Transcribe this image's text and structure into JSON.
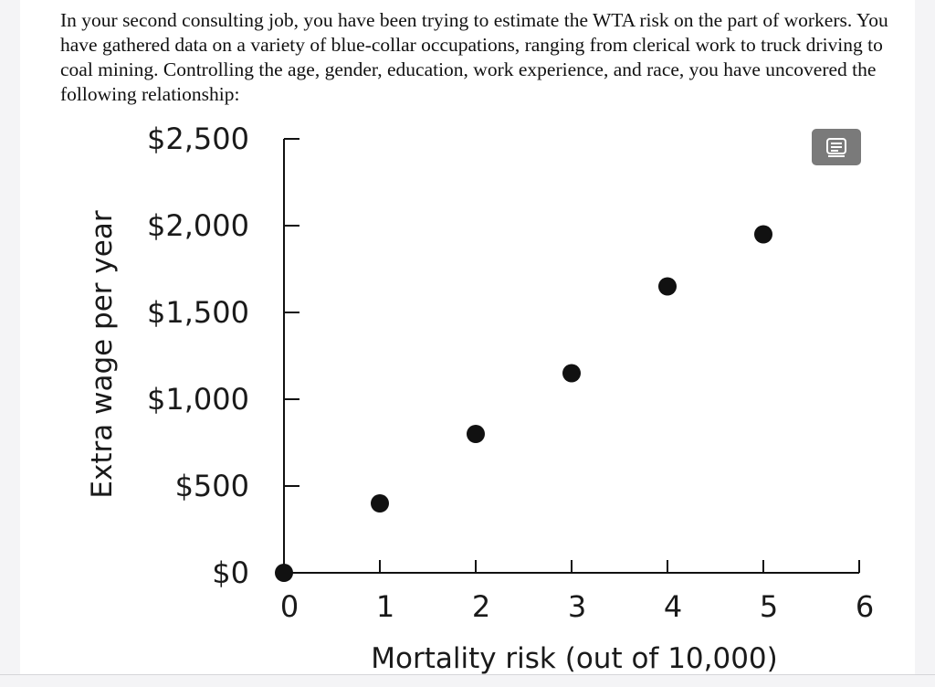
{
  "question": {
    "text": "In your second consulting job, you have been trying to estimate the WTA risk on the part of workers. You have gathered data on a variety of blue-collar occupations, ranging from clerical work to truck driving to coal mining. Controlling the age, gender, education, work experience, and race, you have uncovered the following relationship:"
  },
  "copy_button": {
    "icon": "copy-text-icon"
  },
  "chart_data": {
    "type": "scatter",
    "title": "",
    "xlabel": "Mortality risk (out of 10,000)",
    "ylabel": "Extra wage per year",
    "xlim": [
      0,
      6
    ],
    "ylim": [
      0,
      2500
    ],
    "x_ticks": [
      0,
      1,
      2,
      3,
      4,
      5,
      6
    ],
    "x_tick_labels": [
      "0",
      "1",
      "2",
      "3",
      "4",
      "5",
      "6"
    ],
    "y_ticks": [
      0,
      500,
      1000,
      1500,
      2000,
      2500
    ],
    "y_tick_labels": [
      "$0",
      "$500",
      "$1,000",
      "$1,500",
      "$2,000",
      "$2,500"
    ],
    "grid": false,
    "points": [
      {
        "x": 0,
        "y": 0
      },
      {
        "x": 1,
        "y": 400
      },
      {
        "x": 2,
        "y": 800
      },
      {
        "x": 3,
        "y": 1150
      },
      {
        "x": 4,
        "y": 1650
      },
      {
        "x": 5,
        "y": 1950
      }
    ]
  }
}
